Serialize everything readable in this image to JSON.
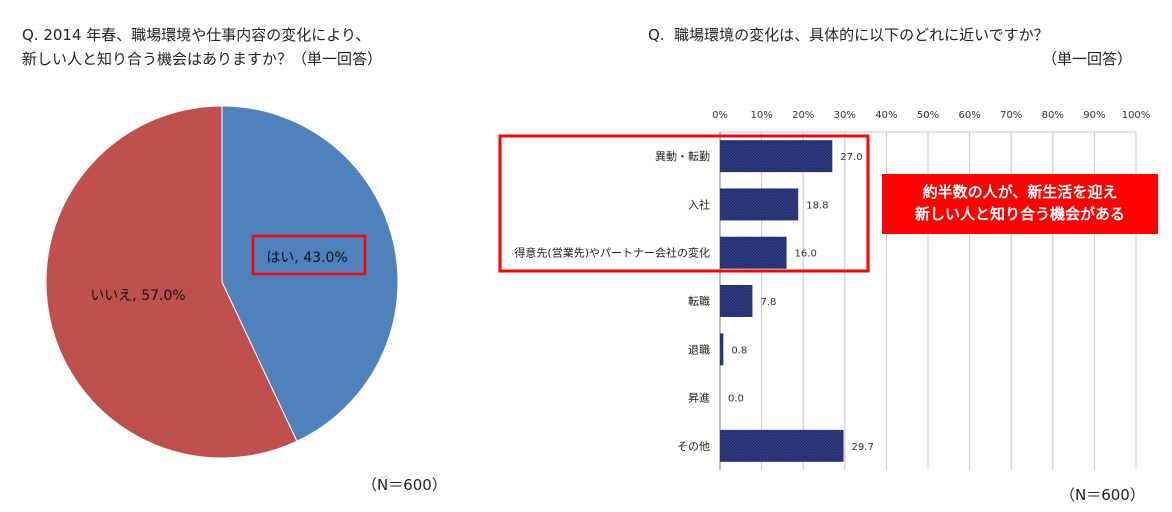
{
  "left_chart": {
    "question_line1": "Q. 2014 年春、職場環境や仕事内容の変化により、",
    "question_line2": "新しい人と知り合う機会はありますか？（単一回答）",
    "n_label": "（N＝600）"
  },
  "right_chart": {
    "question_line1": "Q.  職場環境の変化は、具体的に以下のどれに近いですか？",
    "question_line2": "（単一回答）",
    "n_label": "（N＝600）",
    "callout_line1": "約半数の人が、新生活を迎え",
    "callout_line2": "新しい人と知り合う機会がある"
  },
  "colors": {
    "pie_yes": "#4f81bd",
    "pie_no": "#c0504d",
    "bar": "#1f2a6b",
    "highlight": "#ff0000"
  },
  "chart_data": [
    {
      "type": "pie",
      "slices": [
        {
          "label": "はい, 43.0%",
          "category": "はい",
          "value": 43.0
        },
        {
          "label": "いいえ, 57.0%",
          "category": "いいえ",
          "value": 57.0
        }
      ]
    },
    {
      "type": "bar",
      "orientation": "horizontal",
      "categories": [
        "異動・転勤",
        "入社",
        "得意先(営業先)やパートナー会社の変化",
        "転職",
        "退職",
        "昇進",
        "その他"
      ],
      "values": [
        27.0,
        18.8,
        16.0,
        7.8,
        0.8,
        0.0,
        29.7
      ],
      "value_labels": [
        "27.0",
        "18.8",
        "16.0",
        "7.8",
        "0.8",
        "0.0",
        "29.7"
      ],
      "xticks": [
        "0%",
        "10%",
        "20%",
        "30%",
        "40%",
        "50%",
        "60%",
        "70%",
        "80%",
        "90%",
        "100%"
      ],
      "xlim": [
        0,
        100
      ],
      "grid": true,
      "highlighted_categories": [
        "異動・転勤",
        "入社",
        "得意先(営業先)やパートナー会社の変化"
      ]
    }
  ]
}
